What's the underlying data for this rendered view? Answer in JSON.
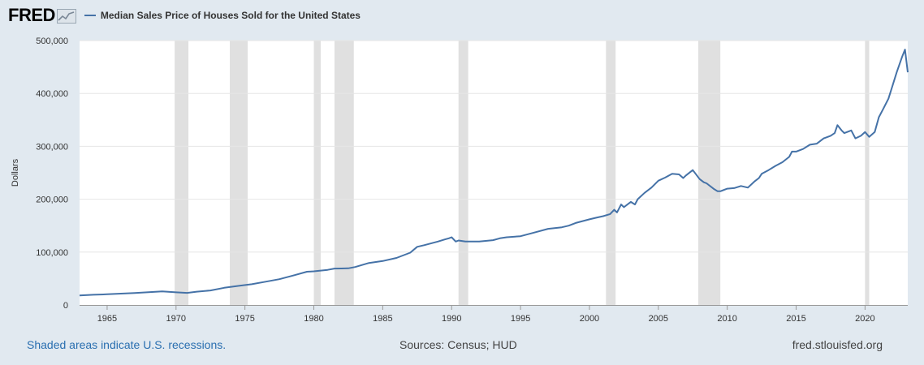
{
  "header": {
    "logo_text": "FRED",
    "logo_icon": "chart-line-icon",
    "series_legend": "Median Sales Price of Houses Sold for the United States"
  },
  "footer": {
    "recession_note": "Shaded areas indicate U.S. recessions.",
    "sources": "Sources: Census; HUD",
    "site": "fred.stlouisfed.org"
  },
  "colors": {
    "background": "#e1e9f0",
    "plot": "#ffffff",
    "series": "#4572a7",
    "recession": "#e0e0e0"
  },
  "chart_data": {
    "type": "line",
    "title": "Median Sales Price of Houses Sold for the United States",
    "ylabel": "Dollars",
    "xlabel": "",
    "xlim": [
      1963.0,
      2023.1
    ],
    "ylim": [
      0,
      500000
    ],
    "x_ticks": [
      "1965",
      "1970",
      "1975",
      "1980",
      "1985",
      "1990",
      "1995",
      "2000",
      "2005",
      "2010",
      "2015",
      "2020"
    ],
    "y_ticks": [
      "0",
      "100,000",
      "200,000",
      "300,000",
      "400,000",
      "500,000"
    ],
    "grid": true,
    "legend": "top-left",
    "recessions": [
      [
        1969.9,
        1970.9
      ],
      [
        1973.9,
        1975.2
      ],
      [
        1980.0,
        1980.5
      ],
      [
        1981.5,
        1982.9
      ],
      [
        1990.5,
        1991.2
      ],
      [
        2001.2,
        2001.9
      ],
      [
        2007.9,
        2009.5
      ],
      [
        2020.0,
        2020.3
      ]
    ],
    "series": [
      {
        "name": "Median Sales Price of Houses Sold for the United States",
        "x": [
          1963.0,
          1964.0,
          1965.0,
          1966.0,
          1967.0,
          1968.0,
          1969.0,
          1970.0,
          1970.8,
          1971.5,
          1972.5,
          1973.5,
          1974.5,
          1975.5,
          1976.5,
          1977.5,
          1978.5,
          1979.5,
          1980.0,
          1981.0,
          1981.5,
          1982.0,
          1982.5,
          1983.0,
          1984.0,
          1985.0,
          1986.0,
          1987.0,
          1987.5,
          1988.0,
          1989.0,
          1989.5,
          1989.8,
          1990.0,
          1990.3,
          1990.5,
          1991.0,
          1992.0,
          1993.0,
          1993.5,
          1994.0,
          1995.0,
          1996.0,
          1997.0,
          1998.0,
          1998.5,
          1999.0,
          2000.0,
          2000.5,
          2001.0,
          2001.5,
          2001.8,
          2002.0,
          2002.3,
          2002.5,
          2003.0,
          2003.3,
          2003.5,
          2004.0,
          2004.5,
          2005.0,
          2005.5,
          2006.0,
          2006.5,
          2006.8,
          2007.0,
          2007.5,
          2008.0,
          2008.3,
          2008.5,
          2009.0,
          2009.3,
          2009.5,
          2010.0,
          2010.5,
          2011.0,
          2011.5,
          2012.0,
          2012.3,
          2012.5,
          2013.0,
          2013.5,
          2014.0,
          2014.5,
          2014.7,
          2015.0,
          2015.5,
          2016.0,
          2016.5,
          2017.0,
          2017.5,
          2017.8,
          2018.0,
          2018.3,
          2018.5,
          2019.0,
          2019.3,
          2019.7,
          2020.0,
          2020.3,
          2020.7,
          2021.0,
          2021.3,
          2021.7,
          2022.0,
          2022.3,
          2022.7,
          2022.9,
          2023.1
        ],
        "values": [
          18000,
          19300,
          20200,
          21400,
          22700,
          24200,
          25600,
          23900,
          22900,
          25200,
          27500,
          32500,
          36000,
          39200,
          44000,
          48800,
          55700,
          62900,
          63700,
          66400,
          68900,
          69000,
          69300,
          71800,
          79400,
          83200,
          89000,
          99000,
          110000,
          113000,
          120000,
          124000,
          126000,
          128000,
          120000,
          122000,
          120000,
          120000,
          122500,
          126000,
          128000,
          130000,
          137000,
          144000,
          147000,
          150000,
          155000,
          162000,
          165000,
          168000,
          172000,
          180000,
          175000,
          190000,
          185000,
          195000,
          190000,
          200000,
          212000,
          222000,
          235000,
          241000,
          248000,
          247000,
          240000,
          245000,
          255000,
          238000,
          232000,
          230000,
          220000,
          215000,
          215000,
          220000,
          221000,
          225000,
          222000,
          234000,
          240000,
          248000,
          255000,
          263000,
          270000,
          280000,
          290000,
          290000,
          295000,
          303000,
          305000,
          315000,
          320000,
          325000,
          340000,
          330000,
          325000,
          330000,
          315000,
          320000,
          327000,
          318000,
          327000,
          355000,
          370000,
          390000,
          415000,
          440000,
          470000,
          483000,
          440000
        ]
      }
    ]
  }
}
